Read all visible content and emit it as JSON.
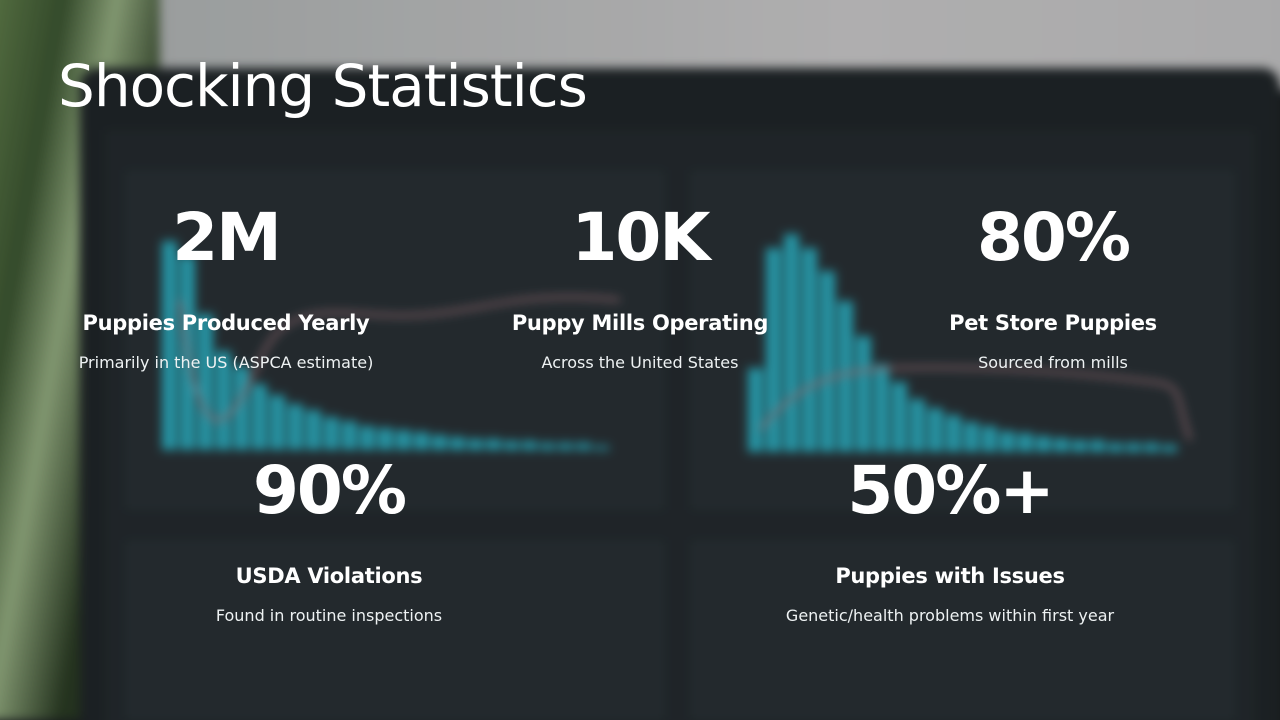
{
  "slide": {
    "title": "Shocking Statistics"
  },
  "stats": [
    {
      "value": "2M",
      "label": "Puppies Produced Yearly",
      "description": "Primarily in the US (ASPCA estimate)"
    },
    {
      "value": "10K",
      "label": "Puppy Mills Operating",
      "description": "Across the United States"
    },
    {
      "value": "80%",
      "label": "Pet Store Puppies",
      "description": "Sourced from mills"
    },
    {
      "value": "90%",
      "label": "USDA Violations",
      "description": "Found in routine inspections"
    },
    {
      "value": "50%+",
      "label": "Puppies with Issues",
      "description": "Genetic/health problems within first year"
    }
  ],
  "background": {
    "description_colors": {
      "bars": "#2fb6c9",
      "curve": "#b07f86",
      "screen": "#262d31"
    },
    "bars_left": [
      0.95,
      0.88,
      0.62,
      0.45,
      0.38,
      0.3,
      0.25,
      0.21,
      0.18,
      0.15,
      0.13,
      0.11,
      0.1,
      0.09,
      0.08,
      0.07,
      0.06,
      0.05,
      0.05,
      0.04,
      0.04,
      0.03,
      0.03,
      0.03,
      0.02
    ],
    "bars_right": [
      0.36,
      0.88,
      0.94,
      0.88,
      0.78,
      0.65,
      0.5,
      0.38,
      0.3,
      0.23,
      0.19,
      0.16,
      0.13,
      0.11,
      0.09,
      0.08,
      0.07,
      0.06,
      0.05,
      0.05,
      0.04,
      0.04,
      0.04,
      0.03
    ]
  }
}
